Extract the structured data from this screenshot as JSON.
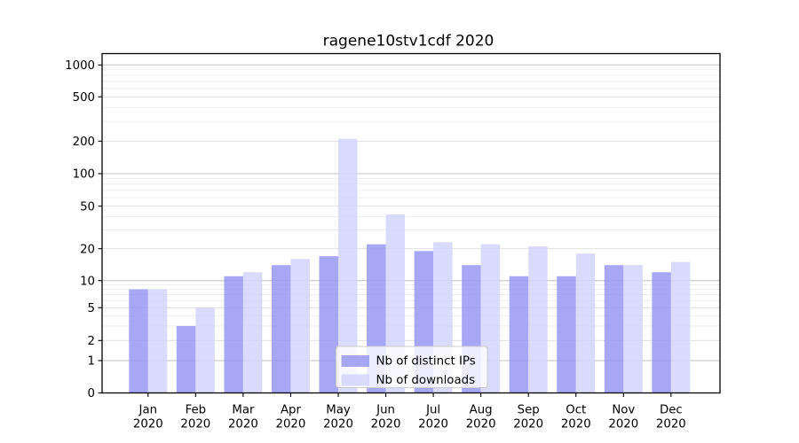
{
  "figure": {
    "background": "#ffffff"
  },
  "chart_data": {
    "type": "bar",
    "title": "ragene10stv1cdf 2020",
    "categories": [
      "Jan",
      "Feb",
      "Mar",
      "Apr",
      "May",
      "Jun",
      "Jul",
      "Aug",
      "Sep",
      "Oct",
      "Nov",
      "Dec"
    ],
    "x_second_line": "2020",
    "series": [
      {
        "name": "Nb of distinct IPs",
        "color": "#9898f3",
        "values": [
          8,
          3,
          11,
          14,
          17,
          22,
          19,
          14,
          11,
          11,
          14,
          12
        ]
      },
      {
        "name": "Nb of downloads",
        "color": "#d3d3f9",
        "values": [
          8,
          5,
          12,
          16,
          210,
          42,
          23,
          22,
          21,
          18,
          14,
          15
        ]
      }
    ],
    "yscale": "symlog",
    "yticks": [
      0,
      1,
      2,
      5,
      10,
      20,
      50,
      100,
      200,
      500,
      1000
    ],
    "ylim": [
      0,
      1300
    ],
    "grid": true,
    "legend_position": "bottom-center",
    "colors": {
      "bar_opacity": "0.85",
      "grid_major": "#c0c0c0",
      "grid_labeled": "#dcdcdc",
      "grid_minor": "#ebebeb",
      "axis": "#000000",
      "text": "#000000",
      "legend_bg": "rgba(255,255,255,0.8)",
      "legend_border": "#cccccc"
    }
  }
}
